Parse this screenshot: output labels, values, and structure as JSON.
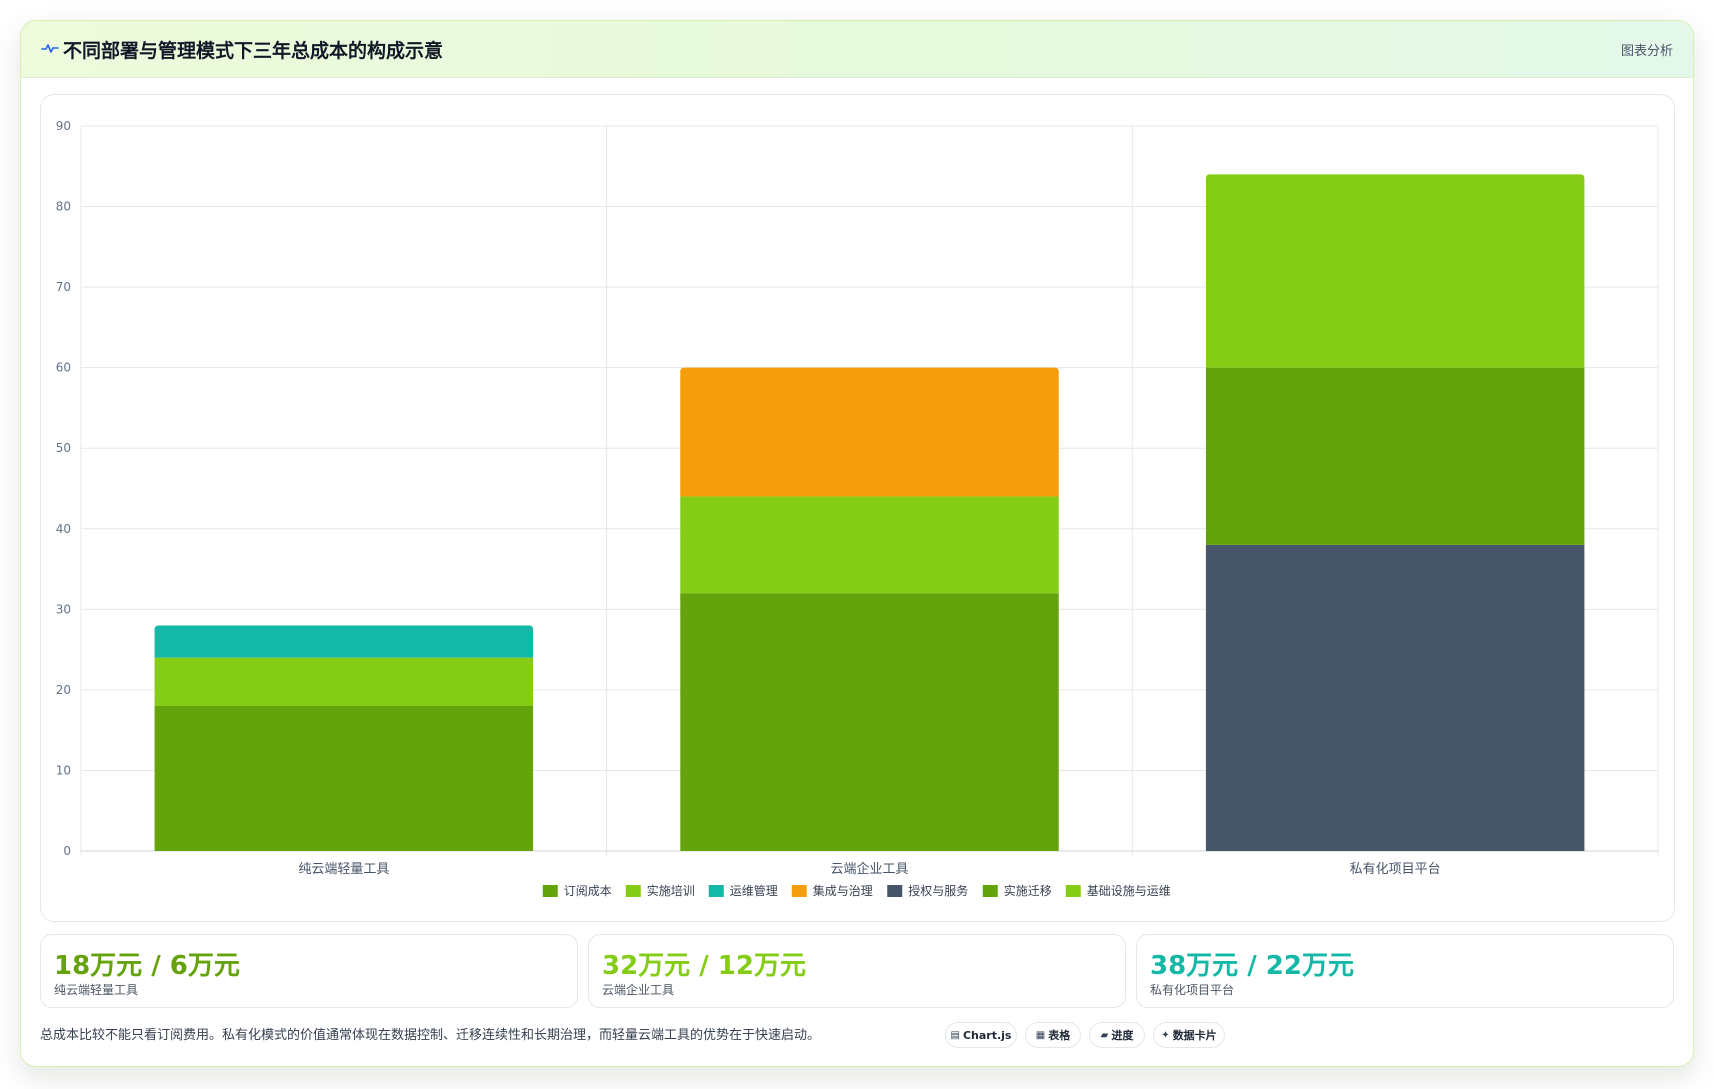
{
  "header": {
    "title": "不同部署与管理模式下三年总成本的构成示意",
    "action_label": "图表分析",
    "icon": "wave-icon"
  },
  "colors": {
    "accent": "#65a30d",
    "lime": "#84cc16",
    "teal": "#14b8a6",
    "orange": "#f59e0b",
    "slate": "#475569"
  },
  "chart_data": {
    "type": "bar",
    "stacked": true,
    "categories": [
      "纯云端轻量工具",
      "云端企业工具",
      "私有化项目平台"
    ],
    "ylim": [
      0,
      90
    ],
    "yticks": [
      0,
      10,
      20,
      30,
      40,
      50,
      60,
      70,
      80,
      90
    ],
    "grid": true,
    "legend_position": "bottom",
    "series": [
      {
        "name": "订阅成本",
        "color": "#65a30d",
        "values": [
          18,
          32,
          0
        ]
      },
      {
        "name": "实施培训",
        "color": "#84cc16",
        "values": [
          6,
          12,
          0
        ]
      },
      {
        "name": "运维管理",
        "color": "#14b8a6",
        "values": [
          4,
          0,
          0
        ]
      },
      {
        "name": "集成与治理",
        "color": "#f59e0b",
        "values": [
          0,
          16,
          0
        ]
      },
      {
        "name": "授权与服务",
        "color": "#475569",
        "values": [
          0,
          0,
          38
        ]
      },
      {
        "name": "实施迁移",
        "color": "#65a30d",
        "values": [
          0,
          0,
          22
        ]
      },
      {
        "name": "基础设施与运维",
        "color": "#84cc16",
        "values": [
          0,
          0,
          24
        ]
      }
    ]
  },
  "stats": [
    {
      "value": "18万元 / 6万元",
      "label": "纯云端轻量工具",
      "color": "#65a30d"
    },
    {
      "value": "32万元 / 12万元",
      "label": "云端企业工具",
      "color": "#84cc16"
    },
    {
      "value": "38万元 / 22万元",
      "label": "私有化项目平台",
      "color": "#14b8a6"
    }
  ],
  "footnote": "总成本比较不能只看订阅费用。私有化模式的价值通常体现在数据控制、迁移连续性和长期治理，而轻量云端工具的优势在于快速启动。",
  "chips": [
    {
      "icon": "chart-icon",
      "glyph": "▤",
      "label": "Chart.js"
    },
    {
      "icon": "table-icon",
      "glyph": "▦",
      "label": "表格"
    },
    {
      "icon": "progress-icon",
      "glyph": "▰",
      "label": "进度"
    },
    {
      "icon": "sparkle-icon",
      "glyph": "✦",
      "label": "数据卡片"
    }
  ]
}
